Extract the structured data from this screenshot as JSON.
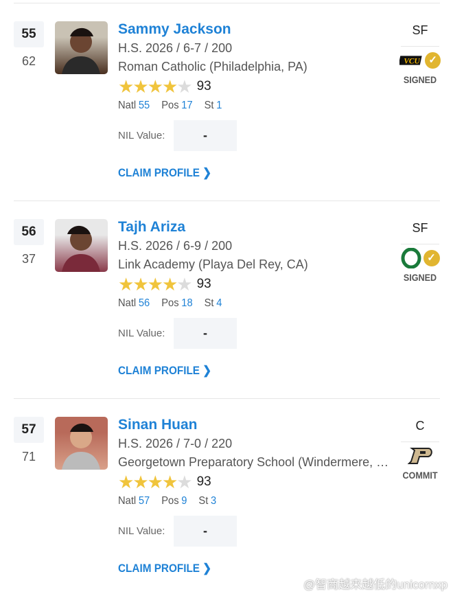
{
  "players": [
    {
      "rank": "55",
      "prev_rank": "62",
      "name": "Sammy Jackson",
      "details": "H.S. 2026 / 6-7 / 200",
      "school": "Roman Catholic (Philadelphia, PA)",
      "stars": 4,
      "rating": "93",
      "natl_label": "Natl",
      "natl": "55",
      "pos_label": "Pos",
      "pos_rank": "17",
      "st_label": "St",
      "st": "1",
      "nil_label": "NIL Value:",
      "nil_value": "-",
      "claim": "CLAIM PROFILE",
      "position": "SF",
      "school_logo": "VCU",
      "status": "SIGNED",
      "checked": true,
      "photo_colors": [
        "#c9c2b4",
        "#4a3020"
      ]
    },
    {
      "rank": "56",
      "prev_rank": "37",
      "name": "Tajh Ariza",
      "details": "H.S. 2026 / 6-9 / 200",
      "school": "Link Academy (Playa Del Rey, CA)",
      "stars": 4,
      "rating": "93",
      "natl_label": "Natl",
      "natl": "56",
      "pos_label": "Pos",
      "pos_rank": "18",
      "st_label": "St",
      "st": "4",
      "nil_label": "NIL Value:",
      "nil_value": "-",
      "claim": "CLAIM PROFILE",
      "position": "SF",
      "school_logo": "Oregon O",
      "status": "SIGNED",
      "checked": true,
      "photo_colors": [
        "#e8e8e8",
        "#8a3a4a"
      ]
    },
    {
      "rank": "57",
      "prev_rank": "71",
      "name": "Sinan Huan",
      "details": "H.S. 2026 / 7-0 / 220",
      "school": "Georgetown Preparatory School (Windermere, FL)",
      "stars": 4,
      "rating": "93",
      "natl_label": "Natl",
      "natl": "57",
      "pos_label": "Pos",
      "pos_rank": "9",
      "st_label": "St",
      "st": "3",
      "nil_label": "NIL Value:",
      "nil_value": "-",
      "claim": "CLAIM PROFILE",
      "position": "C",
      "school_logo": "Purdue P",
      "status": "COMMIT",
      "checked": false,
      "photo_colors": [
        "#b86a5a",
        "#d9a08a"
      ]
    }
  ],
  "watermark": "@智商越来越低的unicornxp",
  "colors": {
    "accent": "#1f82d6",
    "star": "#f0c43c",
    "check": "#e1b530"
  }
}
